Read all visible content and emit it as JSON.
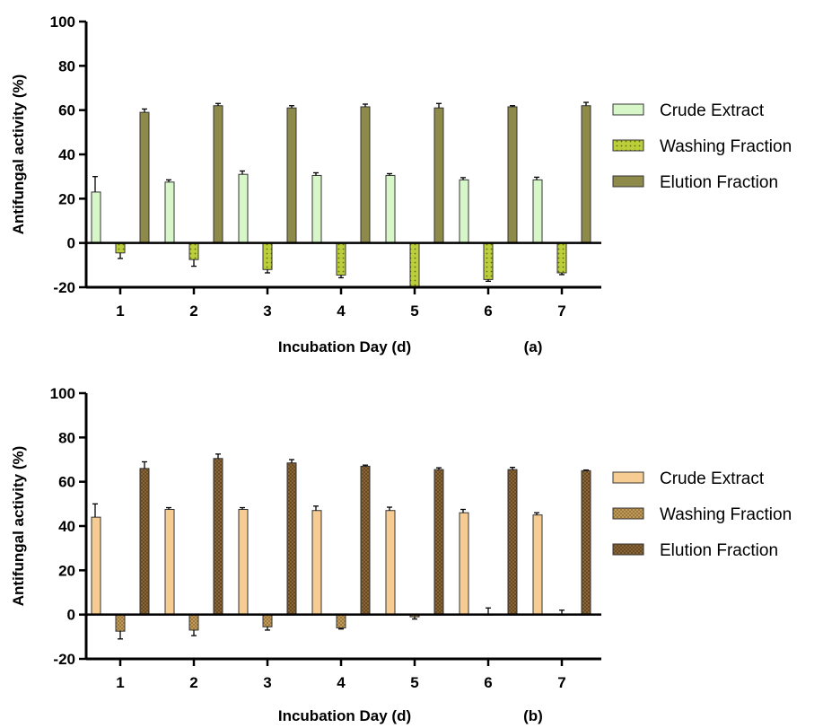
{
  "chart_data": [
    {
      "type": "bar",
      "panel_label": "(a)",
      "xlabel": "Incubation Day (d)",
      "ylabel": "Antifungal activity (%)",
      "ylim": [
        -20,
        100
      ],
      "yticks": [
        "-20",
        "0",
        "20",
        "40",
        "60",
        "80",
        "100"
      ],
      "categories": [
        "1",
        "2",
        "3",
        "4",
        "5",
        "6",
        "7"
      ],
      "legend_placement": "right",
      "series": [
        {
          "name": "Crude Extract",
          "color": "#d8f7c8",
          "pattern": "none",
          "values": [
            23,
            27.5,
            31,
            30.5,
            30.5,
            28.5,
            28.5
          ],
          "errors": [
            7,
            1,
            1.5,
            1.2,
            0.8,
            1,
            1.2
          ]
        },
        {
          "name": "Washing Fraction",
          "color": "#bccf3a",
          "pattern": "dots",
          "values": [
            -4.5,
            -7.5,
            -12,
            -14.5,
            -20,
            -16.5,
            -13.5
          ],
          "errors": [
            2.5,
            3,
            1.5,
            1.2,
            0,
            0.8,
            0.8
          ]
        },
        {
          "name": "Elution Fraction",
          "color": "#8e8a4a",
          "pattern": "none",
          "values": [
            59,
            62,
            61,
            61.5,
            61,
            61.5,
            62
          ],
          "errors": [
            1.5,
            1,
            1,
            1.2,
            2,
            0.5,
            1.5
          ]
        }
      ]
    },
    {
      "type": "bar",
      "panel_label": "(b)",
      "xlabel": "Incubation Day (d)",
      "ylabel": "Antifungal activity (%)",
      "ylim": [
        -20,
        100
      ],
      "yticks": [
        "-20",
        "0",
        "20",
        "40",
        "60",
        "80",
        "100"
      ],
      "categories": [
        "1",
        "2",
        "3",
        "4",
        "5",
        "6",
        "7"
      ],
      "legend_placement": "right",
      "series": [
        {
          "name": "Crude Extract",
          "color": "#f6cc92",
          "pattern": "none",
          "values": [
            44,
            47.5,
            47.5,
            47,
            47,
            46,
            45
          ],
          "errors": [
            6,
            0.8,
            0.8,
            2,
            1.5,
            1.5,
            1
          ]
        },
        {
          "name": "Washing Fraction",
          "color": "#c9a25e",
          "pattern": "cross",
          "values": [
            -7.5,
            -7,
            -5.5,
            -6,
            -1,
            0,
            0
          ],
          "errors": [
            3.5,
            2.5,
            1.5,
            0.5,
            1,
            3,
            2
          ]
        },
        {
          "name": "Elution Fraction",
          "color": "#8f6a3a",
          "pattern": "cross",
          "values": [
            66,
            70.5,
            68.5,
            67,
            65.5,
            65.5,
            65
          ],
          "errors": [
            3,
            2,
            1.5,
            0.5,
            0.8,
            1,
            0.3
          ]
        }
      ]
    }
  ]
}
